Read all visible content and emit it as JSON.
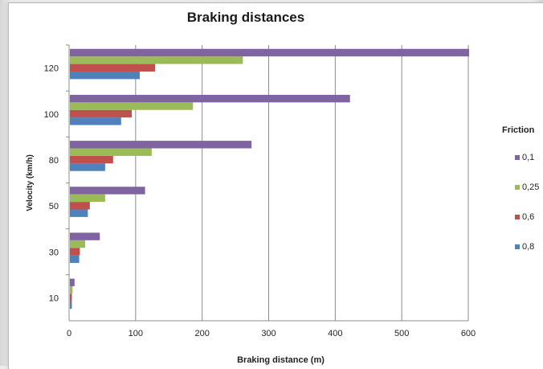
{
  "chart_data": {
    "type": "bar",
    "orientation": "horizontal",
    "title": "Braking distances",
    "xlabel": "Braking distance (m)",
    "ylabel": "Velocity (km/h)",
    "categories": [
      "10",
      "30",
      "50",
      "80",
      "100",
      "120"
    ],
    "xlim": [
      0,
      600
    ],
    "x_ticks": [
      "0",
      "100",
      "200",
      "300",
      "400",
      "500",
      "600"
    ],
    "grid": "vertical",
    "legend_title": "Friction",
    "legend_position": "right",
    "series": [
      {
        "name": "0,8",
        "color": "#4f81bd",
        "values": [
          3,
          14,
          27,
          53,
          77,
          105
        ]
      },
      {
        "name": "0,6",
        "color": "#c0504d",
        "values": [
          3,
          15,
          30,
          65,
          93,
          128
        ]
      },
      {
        "name": "0,25",
        "color": "#9bbb59",
        "values": [
          4,
          23,
          53,
          123,
          185,
          260
        ]
      },
      {
        "name": "0,1",
        "color": "#8064a2",
        "values": [
          7,
          45,
          113,
          273,
          421,
          600
        ]
      }
    ]
  }
}
